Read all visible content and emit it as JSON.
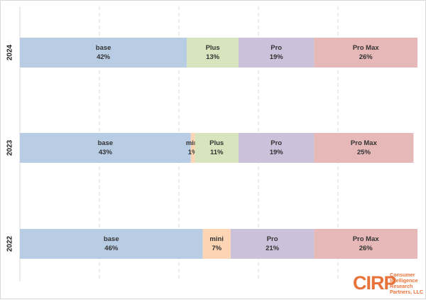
{
  "chart_data": {
    "type": "bar",
    "orientation": "horizontal-stacked-100",
    "categories": [
      "2024",
      "2023",
      "2022"
    ],
    "series": [
      {
        "name": "base",
        "values": [
          42,
          43,
          46
        ]
      },
      {
        "name": "mini",
        "values": [
          0,
          1,
          7
        ]
      },
      {
        "name": "Plus",
        "values": [
          13,
          11,
          0
        ]
      },
      {
        "name": "Pro",
        "values": [
          19,
          19,
          21
        ]
      },
      {
        "name": "Pro Max",
        "values": [
          26,
          25,
          26
        ]
      }
    ],
    "labels": [
      [
        {
          "name": "base",
          "pct": "42%"
        },
        {
          "name": "Plus",
          "pct": "13%"
        },
        {
          "name": "Pro",
          "pct": "19%"
        },
        {
          "name": "Pro Max",
          "pct": "26%"
        }
      ],
      [
        {
          "name": "base",
          "pct": "43%"
        },
        {
          "name": "mini",
          "pct": "1%"
        },
        {
          "name": "Plus",
          "pct": "11%"
        },
        {
          "name": "Pro",
          "pct": "19%"
        },
        {
          "name": "Pro Max",
          "pct": "25%"
        }
      ],
      [
        {
          "name": "base",
          "pct": "46%"
        },
        {
          "name": "mini",
          "pct": "7%"
        },
        {
          "name": "Pro",
          "pct": "21%"
        },
        {
          "name": "Pro Max",
          "pct": "26%"
        }
      ]
    ],
    "xlim": [
      0,
      100
    ],
    "grid": true,
    "legend": "none",
    "title": "",
    "xlabel": "",
    "ylabel": "",
    "colors": {
      "base": "#b8cce4",
      "mini": "#fcd5b4",
      "Plus": "#d7e4bd",
      "Pro": "#ccc1da",
      "Pro Max": "#e6b9b8",
      "grid": "#d9d9d9",
      "logo": "#e8733a"
    }
  },
  "logo": {
    "mark": "CIRP",
    "tagline": [
      "Consumer",
      "Intelligence",
      "Research",
      "Partners, LLC"
    ]
  }
}
